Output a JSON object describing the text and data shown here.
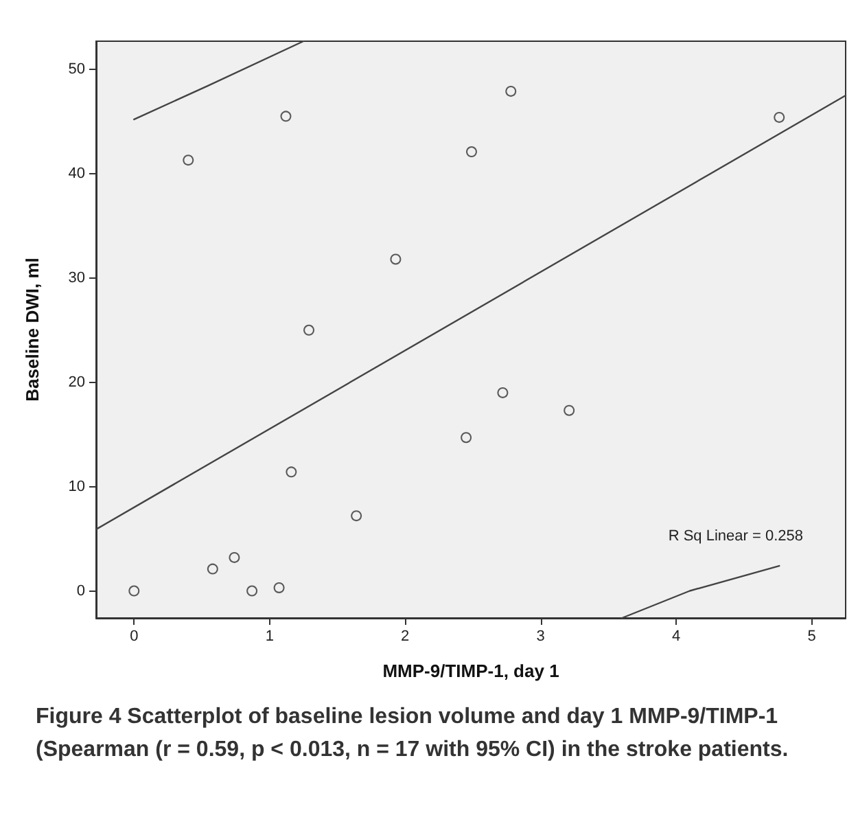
{
  "chart_data": {
    "type": "scatter",
    "xlabel": "MMP-9/TIMP-1, day 1",
    "ylabel": "Baseline DWI, ml",
    "xlim": [
      -0.28,
      5.25
    ],
    "xticks": [
      0,
      1,
      2,
      3,
      4,
      5
    ],
    "ylim": [
      -2.6,
      52.7
    ],
    "yticks": [
      0,
      10,
      20,
      30,
      40,
      50
    ],
    "grid": false,
    "marker": "circle",
    "series": [
      {
        "color": "#333333",
        "x": [
          0.0,
          0.4,
          1.12,
          1.93,
          1.29,
          1.16,
          1.64,
          0.58,
          0.74,
          0.87,
          1.07,
          2.78,
          2.49,
          4.76,
          2.72,
          3.21,
          2.45
        ],
        "values": [
          0,
          41.3,
          45.5,
          31.8,
          25.0,
          11.4,
          7.2,
          2.1,
          3.2,
          0,
          0.3,
          47.9,
          42.1,
          45.4,
          19.0,
          17.3,
          14.7
        ]
      },
      {
        "type": "line",
        "color": "#444444",
        "marker": "none",
        "x": [
          -0.28,
          5.25
        ],
        "values": [
          5.9,
          47.5
        ]
      },
      {
        "type": "line",
        "color": "#444444",
        "marker": "none",
        "x": [
          0.0,
          0.54,
          1.25
        ],
        "values": [
          45.2,
          48.4,
          52.7
        ]
      },
      {
        "type": "line",
        "color": "#444444",
        "marker": "none",
        "x": [
          3.6,
          4.1,
          4.76
        ],
        "values": [
          -2.6,
          0.0,
          2.4
        ]
      }
    ],
    "annotations": [
      "R Sq Linear = 0.258",
      "Figure 4 Scatterplot of baseline lesion volume and day 1 MMP-9/TIMP-1 (Spearman (r = 0.59, p < 0.013, n = 17 with 95% CI) in the stroke patients."
    ]
  }
}
